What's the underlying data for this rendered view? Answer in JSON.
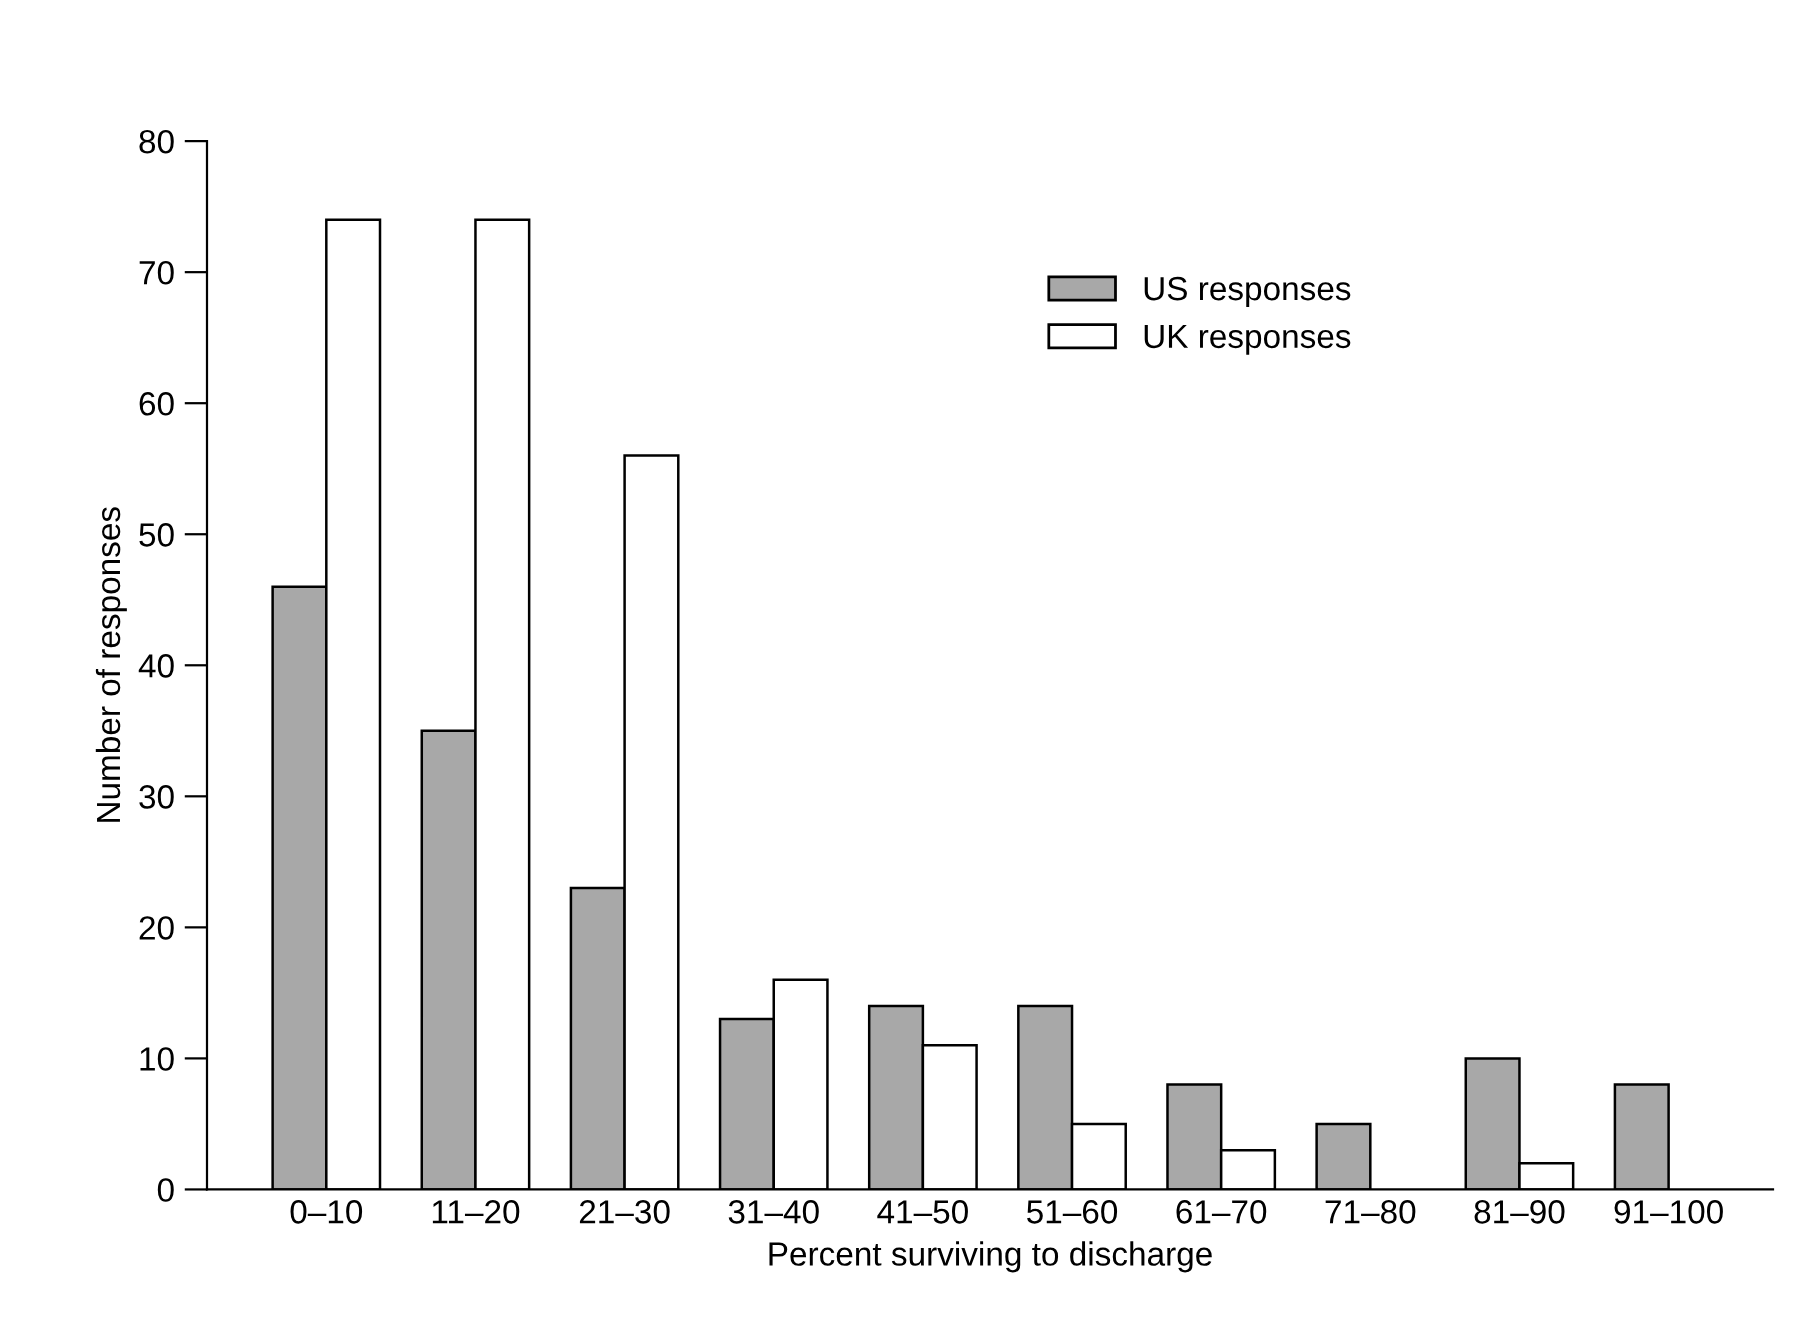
{
  "chart_data": {
    "type": "bar",
    "xlabel": "Percent surviving to discharge",
    "ylabel": "Number of responses",
    "categories": [
      "0–10",
      "11–20",
      "21–30",
      "31–40",
      "41–50",
      "51–60",
      "61–70",
      "71–80",
      "81–90",
      "91–100"
    ],
    "series": [
      {
        "name": "US responses",
        "color": "#a8a8a8",
        "values": [
          46,
          35,
          23,
          13,
          14,
          14,
          8,
          5,
          10,
          8
        ]
      },
      {
        "name": "UK responses",
        "color": "#ffffff",
        "values": [
          74,
          74,
          56,
          16,
          11,
          5,
          3,
          null,
          2,
          null
        ]
      }
    ],
    "ylim": [
      0,
      80
    ],
    "yticks": [
      0,
      10,
      20,
      30,
      40,
      50,
      60,
      70,
      80
    ],
    "grid": false,
    "legend": "top right"
  }
}
